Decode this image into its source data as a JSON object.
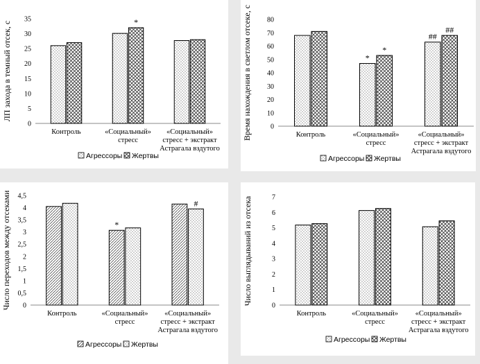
{
  "legend": {
    "series_1": "Агрессоры",
    "series_2": "Жертвы"
  },
  "chart_data": [
    {
      "type": "bar",
      "ylabel": "ЛП захода в темный отсек, с",
      "ylim": [
        0,
        35
      ],
      "yticks": [
        0,
        5,
        10,
        15,
        20,
        25,
        30,
        35
      ],
      "categories": [
        [
          "Контроль"
        ],
        [
          "«Социальный»",
          "стресс"
        ],
        [
          "«Социальный»",
          "стресс + экстракт",
          "Астрагала вздутого"
        ]
      ],
      "series": [
        {
          "name": "Агрессоры",
          "values": [
            26,
            30.1,
            27.7
          ],
          "annotations": [
            "",
            "",
            ""
          ]
        },
        {
          "name": "Жертвы",
          "values": [
            27,
            32,
            28
          ],
          "annotations": [
            "",
            "*",
            ""
          ]
        }
      ]
    },
    {
      "type": "bar",
      "ylabel": "Время нахождения в светлом отсеке, с",
      "ylim": [
        0,
        80
      ],
      "yticks": [
        0,
        10,
        20,
        30,
        40,
        50,
        60,
        70,
        80
      ],
      "categories": [
        [
          "Контроль"
        ],
        [
          "«Социальный»",
          "стресс"
        ],
        [
          "«Социальный»",
          "стресс + экстракт",
          "Астрагала вздутого"
        ]
      ],
      "series": [
        {
          "name": "Агрессоры",
          "values": [
            68,
            47,
            63
          ],
          "annotations": [
            "",
            "*",
            "##"
          ]
        },
        {
          "name": "Жертвы",
          "values": [
            71,
            53,
            68
          ],
          "annotations": [
            "",
            "*",
            "##"
          ]
        }
      ]
    },
    {
      "type": "bar",
      "ylabel": "Число переходов между отсеками",
      "ylim": [
        0,
        4.5
      ],
      "yticks": [
        "0",
        "0,5",
        "1",
        "1,5",
        "2",
        "2,5",
        "3",
        "3,5",
        "4",
        "4,5"
      ],
      "categories": [
        [
          "Контроль"
        ],
        [
          "«Социальный»",
          "стресс"
        ],
        [
          "«Социальный»",
          "стресс + экстракт",
          "Астрагала вздутого"
        ]
      ],
      "series": [
        {
          "name": "Агрессоры",
          "values": [
            4.05,
            3.07,
            4.15
          ],
          "annotations": [
            "",
            "*",
            ""
          ]
        },
        {
          "name": "Жертвы",
          "values": [
            4.18,
            3.17,
            3.95
          ],
          "annotations": [
            "",
            "",
            "#"
          ]
        }
      ]
    },
    {
      "type": "bar",
      "ylabel": "Число выглядываний из отсека",
      "ylim": [
        0,
        7
      ],
      "yticks": [
        0,
        1,
        2,
        3,
        4,
        5,
        6,
        7
      ],
      "categories": [
        [
          "Контроль"
        ],
        [
          "«Социальный»",
          "стресс"
        ],
        [
          "«Социальный»",
          "стресс + экстракт",
          "Астрагала вздутого"
        ]
      ],
      "series": [
        {
          "name": "Агрессоры",
          "values": [
            5.18,
            6.12,
            5.07
          ],
          "annotations": [
            "",
            "",
            ""
          ]
        },
        {
          "name": "Жертвы",
          "values": [
            5.27,
            6.25,
            5.45
          ],
          "annotations": [
            "",
            "",
            ""
          ]
        }
      ]
    }
  ]
}
